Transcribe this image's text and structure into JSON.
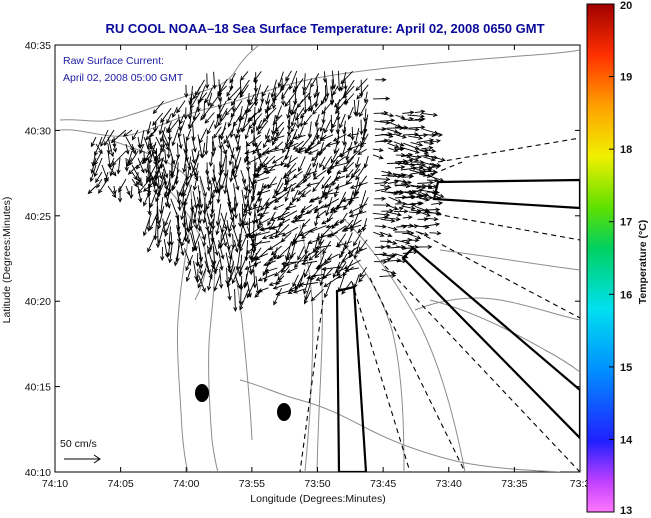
{
  "title": "RU COOL  NOAA–18  Sea Surface Temperature:  April 02, 2008 0650 GMT",
  "annotation": {
    "line1": "Raw Surface Current:",
    "line2": "April 02, 2008 05:00 GMT"
  },
  "scale_label": "50 cm/s",
  "axes": {
    "xlabel": "Longitude (Degrees:Minutes)",
    "ylabel": "Latitude (Degrees:Minutes)",
    "xticks": [
      "74:10",
      "74:05",
      "74:00",
      "73:55",
      "73:50",
      "73:45",
      "73:40",
      "73:35",
      "73:3"
    ],
    "yticks": [
      "40:35",
      "40:30",
      "40:25",
      "40:20",
      "40:15",
      "40:10"
    ]
  },
  "colorbar": {
    "label": "Temperature (°C)",
    "ticks": [
      "20",
      "19",
      "18",
      "17",
      "16",
      "15",
      "14",
      "13"
    ],
    "min": 13,
    "max": 20
  },
  "colors": {
    "title": "#0a0a9a",
    "annotation": "#1a1aa0",
    "contour": "#8c8c8c",
    "vectors": "#000000"
  }
}
